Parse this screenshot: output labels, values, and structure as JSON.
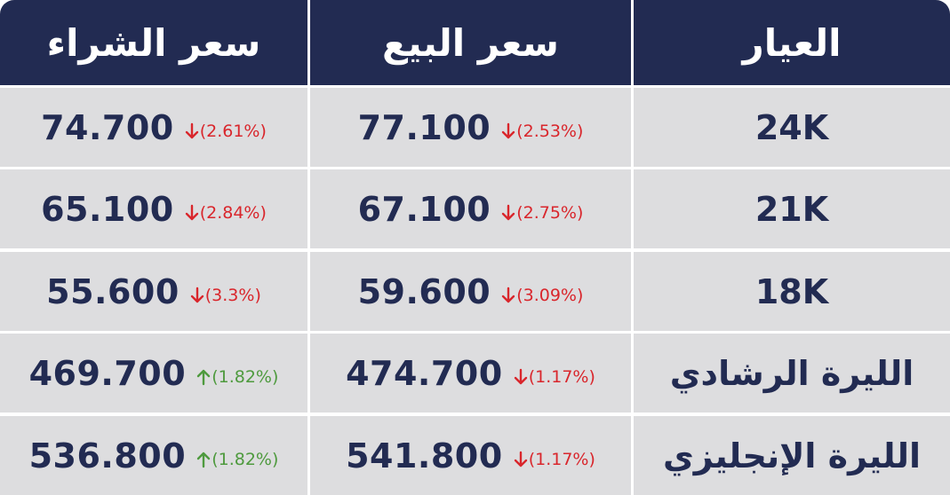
{
  "header": {
    "buy_label": "سعر الشراء",
    "sell_label": "سعر البيع",
    "karat_label": "العيار"
  },
  "colors": {
    "header_bg": "#222b52",
    "row_bg": "#dddddf",
    "down": "#d9262c",
    "up": "#4e9a3e"
  },
  "rows": [
    {
      "karat": "24K",
      "sell": {
        "price": "77.100",
        "change": "(2.53%)",
        "direction": "down",
        "icon": "arrow-down-icon"
      },
      "buy": {
        "price": "74.700",
        "change": "(2.61%)",
        "direction": "down",
        "icon": "arrow-down-icon"
      }
    },
    {
      "karat": "21K",
      "sell": {
        "price": "67.100",
        "change": "(2.75%)",
        "direction": "down",
        "icon": "arrow-down-icon"
      },
      "buy": {
        "price": "65.100",
        "change": "(2.84%)",
        "direction": "down",
        "icon": "arrow-down-icon"
      }
    },
    {
      "karat": "18K",
      "sell": {
        "price": "59.600",
        "change": "(3.09%)",
        "direction": "down",
        "icon": "arrow-down-icon"
      },
      "buy": {
        "price": "55.600",
        "change": "(3.3%)",
        "direction": "down",
        "icon": "arrow-down-icon"
      }
    },
    {
      "karat": "الليرة الرشادي",
      "sell": {
        "price": "474.700",
        "change": "(1.17%)",
        "direction": "down",
        "icon": "arrow-down-icon"
      },
      "buy": {
        "price": "469.700",
        "change": "(1.82%)",
        "direction": "up",
        "icon": "arrow-up-icon"
      }
    },
    {
      "karat": "الليرة الإنجليزي",
      "sell": {
        "price": "541.800",
        "change": "(1.17%)",
        "direction": "down",
        "icon": "arrow-down-icon"
      },
      "buy": {
        "price": "536.800",
        "change": "(1.82%)",
        "direction": "up",
        "icon": "arrow-up-icon"
      }
    }
  ]
}
